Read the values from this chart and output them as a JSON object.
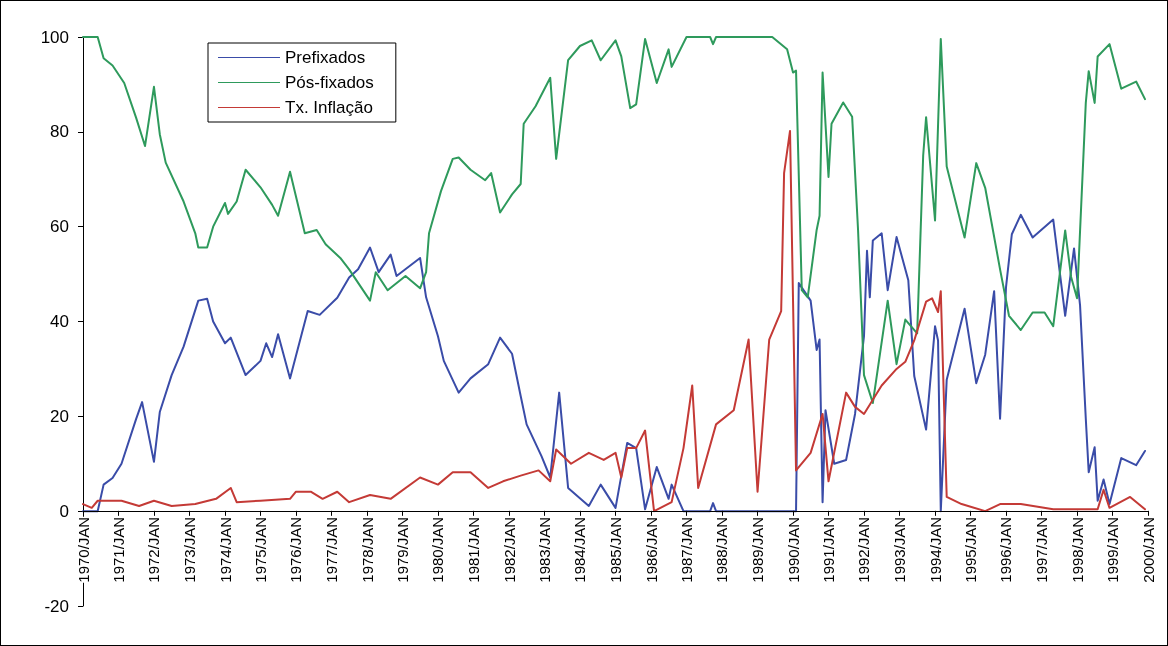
{
  "chart_data": {
    "type": "line",
    "legend": "top left",
    "grid": false,
    "xlim": [
      "1970-01",
      "2000-01"
    ],
    "xticks": [
      {
        "value": "1970-01",
        "label": "1970/JAN"
      },
      {
        "value": "1971-01",
        "label": "1971/JAN"
      },
      {
        "value": "1972-01",
        "label": "1972/JAN"
      },
      {
        "value": "1973-01",
        "label": "1973/JAN"
      },
      {
        "value": "1974-01",
        "label": "1974/JAN"
      },
      {
        "value": "1975-01",
        "label": "1975/JAN"
      },
      {
        "value": "1976-01",
        "label": "1976/JAN"
      },
      {
        "value": "1977-01",
        "label": "1977/JAN"
      },
      {
        "value": "1978-01",
        "label": "1978/JAN"
      },
      {
        "value": "1979-01",
        "label": "1979/JAN"
      },
      {
        "value": "1980-01",
        "label": "1980/JAN"
      },
      {
        "value": "1981-01",
        "label": "1981/JAN"
      },
      {
        "value": "1982-01",
        "label": "1982/JAN"
      },
      {
        "value": "1983-01",
        "label": "1983/JAN"
      },
      {
        "value": "1984-01",
        "label": "1984/JAN"
      },
      {
        "value": "1985-01",
        "label": "1985/JAN"
      },
      {
        "value": "1986-01",
        "label": "1986/JAN"
      },
      {
        "value": "1987-01",
        "label": "1987/JAN"
      },
      {
        "value": "1988-01",
        "label": "1988/JAN"
      },
      {
        "value": "1989-01",
        "label": "1989/JAN"
      },
      {
        "value": "1990-01",
        "label": "1990/JAN"
      },
      {
        "value": "1991-01",
        "label": "1991/JAN"
      },
      {
        "value": "1992-01",
        "label": "1992/JAN"
      },
      {
        "value": "1993-01",
        "label": "1993/JAN"
      },
      {
        "value": "1994-01",
        "label": "1994/JAN"
      },
      {
        "value": "1995-01",
        "label": "1995/JAN"
      },
      {
        "value": "1996-01",
        "label": "1996/JAN"
      },
      {
        "value": "1997-01",
        "label": "1997/JAN"
      },
      {
        "value": "1998-01",
        "label": "1998/JAN"
      },
      {
        "value": "1999-01",
        "label": "1999/JAN"
      },
      {
        "value": "2000-01",
        "label": "2000/JAN"
      }
    ],
    "ylim": [
      -20,
      100
    ],
    "yticks": [
      -20,
      0,
      20,
      40,
      60,
      80,
      100
    ],
    "series": [
      {
        "name": "Prefixados",
        "color": "#3a4ca8",
        "x": [
          "1970-01",
          "1970-06",
          "1970-08",
          "1970-11",
          "1971-02",
          "1971-07",
          "1971-09",
          "1972-01",
          "1972-03",
          "1972-07",
          "1972-11",
          "1973-04",
          "1973-07",
          "1973-09",
          "1974-01",
          "1974-03",
          "1974-08",
          "1975-01",
          "1975-03",
          "1975-05",
          "1975-07",
          "1975-11",
          "1976-05",
          "1976-09",
          "1977-03",
          "1977-07",
          "1977-10",
          "1978-02",
          "1978-05",
          "1978-09",
          "1978-11",
          "1979-07",
          "1979-09",
          "1980-01",
          "1980-03",
          "1980-08",
          "1980-12",
          "1981-06",
          "1981-10",
          "1982-02",
          "1982-05",
          "1982-07",
          "1982-12",
          "1983-03",
          "1983-06",
          "1983-09",
          "1984-04",
          "1984-08",
          "1985-01",
          "1985-05",
          "1985-08",
          "1985-11",
          "1986-03",
          "1986-07",
          "1986-08",
          "1986-12",
          "1987-09",
          "1987-10",
          "1987-11",
          "1990-02",
          "1990-03",
          "1990-07",
          "1990-09",
          "1990-10",
          "1990-11",
          "1990-12",
          "1991-03",
          "1991-07",
          "1991-10",
          "1992-01",
          "1992-02",
          "1992-03",
          "1992-04",
          "1992-07",
          "1992-09",
          "1992-12",
          "1993-04",
          "1993-06",
          "1993-10",
          "1994-01",
          "1994-02",
          "1994-03",
          "1994-05",
          "1994-11",
          "1995-03",
          "1995-06",
          "1995-09",
          "1995-11",
          "1996-01",
          "1996-03",
          "1996-06",
          "1996-10",
          "1997-05",
          "1997-09",
          "1997-12",
          "1998-02",
          "1998-04",
          "1998-05",
          "1998-07",
          "1998-08",
          "1998-10",
          "1998-12",
          "1999-04",
          "1999-09",
          "1999-12"
        ],
        "values": [
          0,
          0,
          5.6,
          7,
          10,
          19.4,
          23,
          10.4,
          20.9,
          28.7,
          34.7,
          44.4,
          44.8,
          40,
          35.4,
          36.6,
          28.7,
          31.7,
          35.4,
          32.5,
          37.3,
          28,
          42.2,
          41.4,
          45,
          49.3,
          51,
          55.6,
          50.4,
          54.1,
          49.6,
          53.4,
          45.1,
          36.9,
          31.7,
          25,
          28,
          31,
          36.6,
          33.2,
          24.3,
          18.3,
          11.6,
          7.1,
          25,
          4.9,
          1.1,
          5.6,
          0.7,
          14.4,
          13.3,
          0.4,
          9.3,
          2.6,
          5.6,
          0,
          0,
          1.7,
          0,
          0,
          48.1,
          44.4,
          34,
          36.2,
          1.9,
          21.3,
          10,
          10.8,
          20.5,
          36.9,
          54.9,
          45.1,
          57.1,
          58.6,
          46.6,
          57.8,
          48.7,
          28.5,
          17.2,
          39,
          36,
          0,
          27.7,
          42.7,
          27,
          33,
          46.4,
          19.5,
          47.2,
          58.4,
          62.5,
          57.7,
          61.5,
          41.2,
          55.4,
          43.4,
          19.5,
          8.2,
          13.5,
          2.2,
          6.7,
          1.5,
          11.2,
          9.7,
          12.7
        ]
      },
      {
        "name": "Pós-fixados",
        "color": "#2e9a5c",
        "x": [
          "1970-01",
          "1970-06",
          "1970-08",
          "1970-11",
          "1971-03",
          "1971-07",
          "1971-10",
          "1972-01",
          "1972-03",
          "1972-05",
          "1972-11",
          "1973-03",
          "1973-04",
          "1973-07",
          "1973-09",
          "1974-01",
          "1974-02",
          "1974-05",
          "1974-08",
          "1975-01",
          "1975-05",
          "1975-07",
          "1975-11",
          "1976-04",
          "1976-08",
          "1976-11",
          "1977-04",
          "1977-07",
          "1978-02",
          "1978-04",
          "1978-08",
          "1979-02",
          "1979-07",
          "1979-09",
          "1979-10",
          "1980-02",
          "1980-06",
          "1980-08",
          "1980-12",
          "1981-05",
          "1981-07",
          "1981-10",
          "1982-02",
          "1982-05",
          "1982-06",
          "1982-10",
          "1983-03",
          "1983-05",
          "1983-09",
          "1984-01",
          "1984-05",
          "1984-08",
          "1985-01",
          "1985-03",
          "1985-06",
          "1985-08",
          "1985-11",
          "1986-03",
          "1986-07",
          "1986-08",
          "1987-01",
          "1987-09",
          "1987-10",
          "1987-11",
          "1989-06",
          "1989-11",
          "1990-01",
          "1990-02",
          "1990-04",
          "1990-06",
          "1990-09",
          "1990-10",
          "1990-11",
          "1991-01",
          "1991-02",
          "1991-06",
          "1991-09",
          "1991-11",
          "1992-01",
          "1992-04",
          "1992-09",
          "1992-12",
          "1993-03",
          "1993-07",
          "1993-09",
          "1993-10",
          "1994-01",
          "1994-03",
          "1994-05",
          "1994-11",
          "1995-03",
          "1995-06",
          "1995-11",
          "1996-02",
          "1996-06",
          "1996-10",
          "1997-02",
          "1997-05",
          "1997-09",
          "1997-11",
          "1998-01",
          "1998-04",
          "1998-05",
          "1998-07",
          "1998-08",
          "1998-12",
          "1999-04",
          "1999-09",
          "1999-12"
        ],
        "values": [
          100,
          100,
          95.5,
          94,
          90.3,
          83,
          77,
          89.5,
          79.5,
          73.5,
          65.3,
          58.6,
          55.6,
          55.6,
          60,
          65,
          62.7,
          65.3,
          72,
          68.3,
          64.6,
          62.3,
          71.6,
          58.6,
          59.3,
          56.3,
          53.4,
          51,
          44.4,
          50.4,
          46.6,
          49.6,
          47,
          50.4,
          58.6,
          67.5,
          74.3,
          74.6,
          72,
          69.8,
          71.3,
          63,
          66.8,
          69,
          81.7,
          85.4,
          91.4,
          74.3,
          95.1,
          98.1,
          99.3,
          95.1,
          99.3,
          95.9,
          85,
          85.8,
          99.6,
          90.3,
          97.4,
          93.7,
          100,
          100,
          98.5,
          100,
          100,
          97.4,
          92.5,
          92.9,
          46.6,
          45.1,
          59.3,
          62.3,
          92.5,
          70.5,
          81.7,
          86.2,
          83.2,
          59.3,
          28.7,
          22.8,
          44.4,
          31,
          40.4,
          37.5,
          75,
          83.1,
          61.3,
          99.6,
          72.7,
          57.7,
          73.4,
          68.2,
          51,
          41.2,
          38.2,
          41.9,
          41.9,
          39,
          59.2,
          49.4,
          44.9,
          86.1,
          92.8,
          86.1,
          95.9,
          98.5,
          89.1,
          90.6,
          86.9
        ]
      },
      {
        "name": "Tx. Inflação",
        "color": "#c43a36",
        "x": [
          "1970-01",
          "1970-04",
          "1970-06",
          "1971-02",
          "1971-08",
          "1972-01",
          "1972-07",
          "1973-03",
          "1973-10",
          "1974-03",
          "1974-05",
          "1975-01",
          "1975-11",
          "1976-01",
          "1976-06",
          "1976-10",
          "1977-03",
          "1977-07",
          "1978-02",
          "1978-09",
          "1979-07",
          "1980-01",
          "1980-06",
          "1980-12",
          "1981-06",
          "1981-11",
          "1982-05",
          "1982-11",
          "1983-03",
          "1983-05",
          "1983-10",
          "1984-04",
          "1984-09",
          "1985-01",
          "1985-03",
          "1985-05",
          "1985-08",
          "1985-11",
          "1986-02",
          "1986-08",
          "1986-12",
          "1987-03",
          "1987-05",
          "1987-11",
          "1988-05",
          "1988-10",
          "1989-01",
          "1989-05",
          "1989-09",
          "1989-10",
          "1989-12",
          "1990-02",
          "1990-07",
          "1990-11",
          "1991-01",
          "1991-07",
          "1991-10",
          "1992-01",
          "1992-07",
          "1992-12",
          "1993-03",
          "1993-06",
          "1993-10",
          "1993-12",
          "1994-02",
          "1994-03",
          "1994-05",
          "1994-10",
          "1995-06",
          "1995-11",
          "1996-06",
          "1997-05",
          "1998-08",
          "1998-10",
          "1998-12",
          "1999-07",
          "1999-12"
        ],
        "values": [
          1.5,
          0.7,
          2.2,
          2.2,
          1.1,
          2.2,
          1.1,
          1.5,
          2.6,
          4.9,
          1.9,
          2.2,
          2.6,
          4.1,
          4.1,
          2.6,
          4.1,
          1.9,
          3.4,
          2.6,
          7.1,
          5.6,
          8.2,
          8.2,
          4.9,
          6.3,
          7.5,
          8.6,
          6.3,
          13,
          10,
          12.3,
          10.8,
          12.3,
          7.1,
          13.3,
          13.3,
          17,
          0,
          1.9,
          13.3,
          26.5,
          4.9,
          18.3,
          21.3,
          36.2,
          4.1,
          36.2,
          42.2,
          71.3,
          80.2,
          8.6,
          12.3,
          20.5,
          6.3,
          25,
          22,
          20.5,
          26.5,
          30,
          31.5,
          36,
          44.2,
          44.9,
          42,
          46.4,
          3,
          1.5,
          0,
          1.5,
          1.5,
          0.4,
          0.4,
          4.5,
          0.7,
          3,
          0.4
        ]
      }
    ]
  }
}
